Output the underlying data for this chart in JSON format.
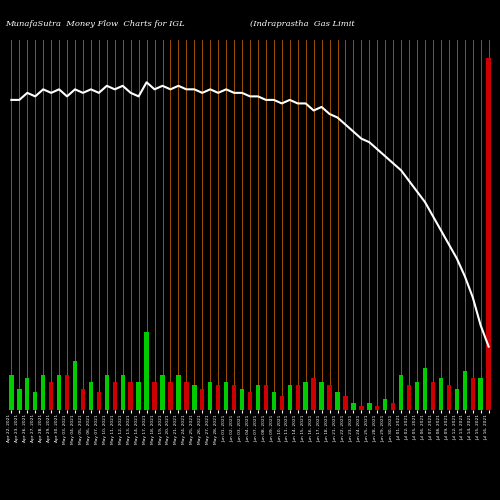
{
  "title_left": "MunafaSutra  Money Flow  Charts for IGL",
  "title_right": "(Indraprastha  Gas Limit",
  "bg_color": "#000000",
  "bar_color_positive": "#00cc00",
  "bar_color_negative": "#cc0000",
  "line_color": "#ffffff",
  "orange_line_color": "#cc6600",
  "categories": [
    "Apr 22, 2021",
    "Apr 23, 2021",
    "Apr 26, 2021",
    "Apr 27, 2021",
    "Apr 28, 2021",
    "Apr 29, 2021",
    "Apr 30, 2021",
    "May 03, 2021",
    "May 04, 2021",
    "May 05, 2021",
    "May 06, 2021",
    "May 07, 2021",
    "May 10, 2021",
    "May 11, 2021",
    "May 12, 2021",
    "May 13, 2021",
    "May 14, 2021",
    "May 17, 2021",
    "May 18, 2021",
    "May 19, 2021",
    "May 20, 2021",
    "May 21, 2021",
    "May 24, 2021",
    "May 25, 2021",
    "May 26, 2021",
    "May 27, 2021",
    "May 28, 2021",
    "Jun 01, 2021",
    "Jun 02, 2021",
    "Jun 03, 2021",
    "Jun 04, 2021",
    "Jun 07, 2021",
    "Jun 08, 2021",
    "Jun 09, 2021",
    "Jun 10, 2021",
    "Jun 11, 2021",
    "Jun 14, 2021",
    "Jun 15, 2021",
    "Jun 16, 2021",
    "Jun 17, 2021",
    "Jun 18, 2021",
    "Jun 21, 2021",
    "Jun 22, 2021",
    "Jun 23, 2021",
    "Jun 24, 2021",
    "Jun 25, 2021",
    "Jun 28, 2021",
    "Jun 29, 2021",
    "Jun 30, 2021",
    "Jul 01, 2021",
    "Jul 02, 2021",
    "Jul 05, 2021",
    "Jul 06, 2021",
    "Jul 07, 2021",
    "Jul 08, 2021",
    "Jul 09, 2021",
    "Jul 12, 2021",
    "Jul 13, 2021",
    "Jul 14, 2021",
    "Jul 15, 2021",
    "Jul 16, 2021"
  ],
  "bar_heights": [
    10,
    6,
    9,
    5,
    10,
    8,
    10,
    10,
    14,
    6,
    8,
    5,
    10,
    8,
    10,
    8,
    8,
    22,
    8,
    10,
    8,
    10,
    8,
    7,
    6,
    8,
    7,
    8,
    7,
    6,
    5,
    7,
    7,
    5,
    4,
    7,
    7,
    8,
    9,
    8,
    7,
    5,
    4,
    2,
    1,
    2,
    1,
    3,
    2,
    10,
    7,
    8,
    12,
    8,
    9,
    7,
    6,
    11,
    9,
    9,
    100
  ],
  "bar_colors": [
    "g",
    "g",
    "g",
    "g",
    "g",
    "r",
    "g",
    "r",
    "g",
    "r",
    "g",
    "r",
    "g",
    "r",
    "g",
    "r",
    "g",
    "g",
    "r",
    "g",
    "r",
    "g",
    "r",
    "g",
    "r",
    "g",
    "r",
    "g",
    "r",
    "g",
    "r",
    "g",
    "r",
    "g",
    "r",
    "g",
    "r",
    "g",
    "r",
    "g",
    "r",
    "g",
    "r",
    "g",
    "r",
    "g",
    "r",
    "g",
    "r",
    "g",
    "r",
    "g",
    "g",
    "r",
    "g",
    "r",
    "g",
    "g",
    "r",
    "g",
    "r"
  ],
  "line_values": [
    88,
    88,
    90,
    89,
    91,
    90,
    91,
    89,
    91,
    90,
    91,
    90,
    92,
    91,
    92,
    90,
    89,
    93,
    91,
    92,
    91,
    92,
    91,
    91,
    90,
    91,
    90,
    91,
    90,
    90,
    89,
    89,
    88,
    88,
    87,
    88,
    87,
    87,
    85,
    86,
    84,
    83,
    81,
    79,
    77,
    76,
    74,
    72,
    70,
    68,
    65,
    62,
    59,
    55,
    51,
    47,
    43,
    38,
    32,
    24,
    18
  ],
  "ylim_max": 105,
  "figsize": [
    5.0,
    5.0
  ],
  "dpi": 100
}
